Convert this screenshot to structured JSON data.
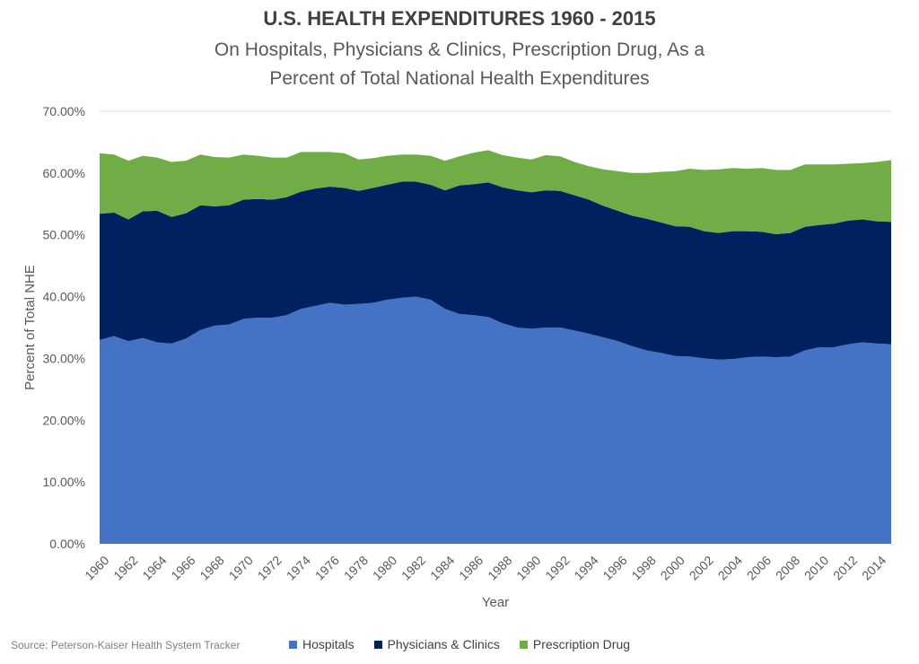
{
  "chart_data": {
    "type": "area",
    "stacked": true,
    "title": "U.S. HEALTH EXPENDITURES 1960 - 2015",
    "subtitle": "On Hospitals, Physicians & Clinics, Prescription Drug, As a Percent of Total National Health Expenditures",
    "xlabel": "Year",
    "ylabel": "Percent of Total NHE",
    "ylim": [
      0,
      70
    ],
    "yticks": [
      "0.00%",
      "10.00%",
      "20.00%",
      "30.00%",
      "40.00%",
      "50.00%",
      "60.00%",
      "70.00%"
    ],
    "xticks": [
      "1960",
      "1962",
      "1964",
      "1966",
      "1968",
      "1970",
      "1972",
      "1974",
      "1976",
      "1978",
      "1980",
      "1982",
      "1984",
      "1986",
      "1988",
      "1990",
      "1992",
      "1994",
      "1996",
      "1998",
      "2000",
      "2002",
      "2004",
      "2006",
      "2008",
      "2010",
      "2012",
      "2014"
    ],
    "x": [
      1960,
      1961,
      1962,
      1963,
      1964,
      1965,
      1966,
      1967,
      1968,
      1969,
      1970,
      1971,
      1972,
      1973,
      1974,
      1975,
      1976,
      1977,
      1978,
      1979,
      1980,
      1981,
      1982,
      1983,
      1984,
      1985,
      1986,
      1987,
      1988,
      1989,
      1990,
      1991,
      1992,
      1993,
      1994,
      1995,
      1996,
      1997,
      1998,
      1999,
      2000,
      2001,
      2002,
      2003,
      2004,
      2005,
      2006,
      2007,
      2008,
      2009,
      2010,
      2011,
      2012,
      2013,
      2014,
      2015
    ],
    "series": [
      {
        "name": "Hospitals",
        "color": "#4472C4",
        "values": [
          33.0,
          33.6,
          32.8,
          33.3,
          32.6,
          32.4,
          33.2,
          34.6,
          35.3,
          35.5,
          36.4,
          36.6,
          36.6,
          37.0,
          38.0,
          38.5,
          39.0,
          38.7,
          38.8,
          39.0,
          39.5,
          39.8,
          40.0,
          39.5,
          38.0,
          37.2,
          37.0,
          36.7,
          35.7,
          35.0,
          34.8,
          35.0,
          35.0,
          34.5,
          34.0,
          33.4,
          32.8,
          32.0,
          31.3,
          30.9,
          30.4,
          30.3,
          30.0,
          29.8,
          29.9,
          30.2,
          30.3,
          30.2,
          30.3,
          31.3,
          31.8,
          31.8,
          32.3,
          32.6,
          32.4,
          32.3
        ]
      },
      {
        "name": "Physicians & Clinics",
        "color": "#002060",
        "values": [
          20.4,
          20.0,
          19.7,
          20.5,
          21.3,
          20.5,
          20.3,
          20.2,
          19.3,
          19.3,
          19.3,
          19.2,
          19.1,
          19.1,
          19.0,
          19.0,
          18.8,
          18.9,
          18.3,
          18.6,
          18.6,
          18.8,
          18.6,
          18.6,
          19.2,
          20.8,
          21.2,
          21.8,
          22.0,
          22.2,
          22.1,
          22.2,
          22.1,
          21.9,
          21.7,
          21.3,
          21.1,
          21.1,
          21.3,
          21.1,
          21.0,
          21.0,
          20.6,
          20.5,
          20.7,
          20.4,
          20.2,
          19.9,
          20.0,
          20.0,
          19.8,
          20.0,
          20.0,
          19.9,
          19.8,
          19.8
        ]
      },
      {
        "name": "Prescription Drug",
        "color": "#70AD47",
        "values": [
          9.8,
          9.4,
          9.5,
          9.0,
          8.6,
          8.9,
          8.5,
          8.2,
          8.0,
          7.7,
          7.3,
          7.0,
          6.8,
          6.4,
          6.4,
          5.9,
          5.6,
          5.6,
          5.1,
          4.8,
          4.7,
          4.4,
          4.4,
          4.7,
          4.8,
          4.7,
          5.1,
          5.2,
          5.2,
          5.3,
          5.3,
          5.7,
          5.6,
          5.4,
          5.4,
          5.9,
          6.4,
          6.9,
          7.4,
          8.2,
          8.9,
          9.4,
          9.9,
          10.3,
          10.2,
          10.1,
          10.3,
          10.4,
          10.2,
          10.1,
          9.8,
          9.6,
          9.2,
          9.1,
          9.6,
          10.0
        ]
      }
    ],
    "legend": "bottom",
    "grid": true
  },
  "source": "Source: Peterson-Kaiser Health System Tracker"
}
